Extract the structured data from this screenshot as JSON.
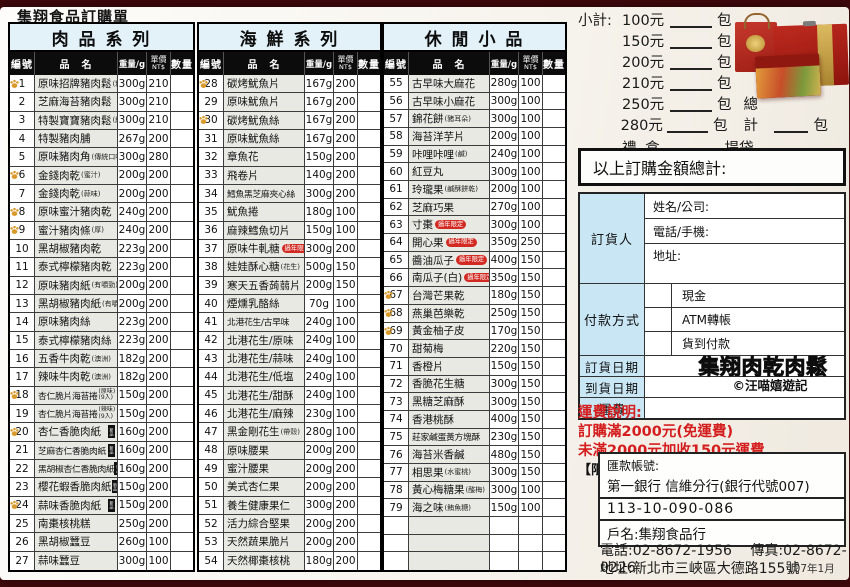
{
  "title": "集翔食品訂購單",
  "columns": {
    "no": "編號",
    "name": "品　名",
    "weight": "重量/g",
    "price_top": "單價",
    "price_bottom": "NT$",
    "qty": "數量"
  },
  "badges": {
    "new": "新品",
    "cny": "過年限定"
  },
  "sections": [
    {
      "title": "肉 品 系 列",
      "items": [
        {
          "no": "1",
          "name": "原味招牌豬肉鬆",
          "note": "(粗)",
          "weight": "300g",
          "price": "210",
          "paw": true
        },
        {
          "no": "2",
          "name": "芝麻海苔豬肉鬆",
          "weight": "300g",
          "price": "210"
        },
        {
          "no": "3",
          "name": "特製寶寶豬肉鬆",
          "note": "(細)",
          "weight": "300g",
          "price": "210"
        },
        {
          "no": "4",
          "name": "特製豬肉脯",
          "weight": "267g",
          "price": "200"
        },
        {
          "no": "5",
          "name": "原味豬肉角",
          "note": "(傳統口味)",
          "weight": "300g",
          "price": "280"
        },
        {
          "no": "6",
          "name": "金錢肉乾",
          "note": "(蜜汁)",
          "weight": "200g",
          "price": "200",
          "paw": true
        },
        {
          "no": "7",
          "name": "金錢肉乾",
          "note": "(蒜味)",
          "weight": "200g",
          "price": "200"
        },
        {
          "no": "8",
          "name": "原味蜜汁豬肉乾",
          "weight": "240g",
          "price": "200",
          "paw": true
        },
        {
          "no": "9",
          "name": "蜜汁豬肉條",
          "note": "(厚)",
          "weight": "240g",
          "price": "200",
          "paw": true
        },
        {
          "no": "10",
          "name": "黑胡椒豬肉乾",
          "weight": "223g",
          "price": "200"
        },
        {
          "no": "11",
          "name": "泰式檸檬豬肉乾",
          "weight": "223g",
          "price": "200"
        },
        {
          "no": "12",
          "name": "原味豬肉紙",
          "note": "(有嚼勁)",
          "weight": "200g",
          "price": "200"
        },
        {
          "no": "13",
          "name": "黑胡椒豬肉紙",
          "note": "(有嚼勁)",
          "weight": "200g",
          "price": "200"
        },
        {
          "no": "14",
          "name": "原味豬肉絲",
          "weight": "223g",
          "price": "200"
        },
        {
          "no": "15",
          "name": "泰式檸檬豬肉絲",
          "weight": "223g",
          "price": "200"
        },
        {
          "no": "16",
          "name": "五香牛肉乾",
          "note": "(澳洲)",
          "weight": "182g",
          "price": "200"
        },
        {
          "no": "17",
          "name": "辣味牛肉乾",
          "note": "(澳洲)",
          "weight": "182g",
          "price": "200"
        },
        {
          "no": "18",
          "name": "杏仁脆片海苔捲",
          "note": "(原味)",
          "note2": "(9入)",
          "weight": "150g",
          "price": "200",
          "paw": true
        },
        {
          "no": "19",
          "name": "杏仁脆片海苔捲",
          "note": "(辣味)",
          "note2": "(9入)",
          "weight": "150g",
          "price": "200"
        },
        {
          "no": "20",
          "name": "杏仁香脆肉紙",
          "badge": "new",
          "weight": "160g",
          "price": "200",
          "paw": true
        },
        {
          "no": "21",
          "name": "芝麻杏仁香脆肉紙",
          "badge": "new",
          "weight": "160g",
          "price": "200"
        },
        {
          "no": "22",
          "name": "黑胡椒杏仁香脆肉紙",
          "badge": "new",
          "weight": "160g",
          "price": "200"
        },
        {
          "no": "23",
          "name": "櫻花蝦香脆肉紙",
          "badge": "new",
          "weight": "150g",
          "price": "200"
        },
        {
          "no": "24",
          "name": "蒜味香脆肉紙",
          "badge": "new",
          "weight": "150g",
          "price": "200",
          "paw": true
        },
        {
          "no": "25",
          "name": "南棗核桃糕",
          "weight": "250g",
          "price": "200"
        },
        {
          "no": "26",
          "name": "黑胡椒蠶豆",
          "weight": "260g",
          "price": "100"
        },
        {
          "no": "27",
          "name": "蒜味蠶豆",
          "weight": "300g",
          "price": "100"
        }
      ]
    },
    {
      "title": "海 鮮 系 列",
      "items": [
        {
          "no": "28",
          "name": "碳烤魷魚片",
          "weight": "167g",
          "price": "200",
          "paw": true
        },
        {
          "no": "29",
          "name": "原味魷魚片",
          "weight": "167g",
          "price": "200"
        },
        {
          "no": "30",
          "name": "碳烤魷魚絲",
          "weight": "167g",
          "price": "200",
          "paw": true
        },
        {
          "no": "31",
          "name": "原味魷魚絲",
          "weight": "167g",
          "price": "200"
        },
        {
          "no": "32",
          "name": "章魚花",
          "weight": "150g",
          "price": "200"
        },
        {
          "no": "33",
          "name": "飛卷片",
          "weight": "140g",
          "price": "200"
        },
        {
          "no": "34",
          "name": "鱈魚黑芝麻夾心絲",
          "weight": "300g",
          "price": "200"
        },
        {
          "no": "35",
          "name": "魷魚捲",
          "weight": "180g",
          "price": "100"
        },
        {
          "no": "36",
          "name": "麻辣鱈魚切片",
          "weight": "150g",
          "price": "100"
        },
        {
          "no": "37",
          "name": "原味牛軋糖",
          "badge": "cny",
          "weight": "300g",
          "price": "200"
        },
        {
          "no": "38",
          "name": "娃娃酥心糖",
          "note": "(花生)",
          "weight": "500g",
          "price": "150"
        },
        {
          "no": "39",
          "name": "寒天五香蒟蒻片",
          "weight": "200g",
          "price": "150"
        },
        {
          "no": "40",
          "name": "煙燻乳酪絲",
          "weight": "70g",
          "price": "100"
        },
        {
          "no": "41",
          "name": "北港花生/古早味",
          "weight": "240g",
          "price": "100"
        },
        {
          "no": "42",
          "name": "北港花生/原味",
          "weight": "240g",
          "price": "100"
        },
        {
          "no": "43",
          "name": "北港花生/蒜味",
          "weight": "240g",
          "price": "100"
        },
        {
          "no": "44",
          "name": "北港花生/低塩",
          "weight": "240g",
          "price": "100"
        },
        {
          "no": "45",
          "name": "北港花生/甜酥",
          "weight": "240g",
          "price": "100"
        },
        {
          "no": "46",
          "name": "北港花生/麻辣",
          "weight": "230g",
          "price": "100"
        },
        {
          "no": "47",
          "name": "黑金剛花生",
          "note": "(帶殼)",
          "weight": "280g",
          "price": "100"
        },
        {
          "no": "48",
          "name": "原味腰果",
          "weight": "200g",
          "price": "200"
        },
        {
          "no": "49",
          "name": "蜜汁腰果",
          "weight": "200g",
          "price": "200"
        },
        {
          "no": "50",
          "name": "美式杏仁果",
          "weight": "200g",
          "price": "200"
        },
        {
          "no": "51",
          "name": "養生健康果仁",
          "weight": "300g",
          "price": "200"
        },
        {
          "no": "52",
          "name": "活力綜合堅果",
          "weight": "200g",
          "price": "200"
        },
        {
          "no": "53",
          "name": "天然蔬果脆片",
          "weight": "200g",
          "price": "200"
        },
        {
          "no": "54",
          "name": "天然椰棗核桃",
          "weight": "180g",
          "price": "200"
        }
      ]
    },
    {
      "title": "休 閒 小 品",
      "empty_rows": 3,
      "items": [
        {
          "no": "55",
          "name": "古早味大麻花",
          "weight": "280g",
          "price": "100"
        },
        {
          "no": "56",
          "name": "古早味小麻花",
          "weight": "300g",
          "price": "100"
        },
        {
          "no": "57",
          "name": "錦花餅",
          "note": "(豬耳朵)",
          "weight": "300g",
          "price": "100"
        },
        {
          "no": "58",
          "name": "海苔洋芋片",
          "weight": "200g",
          "price": "100"
        },
        {
          "no": "59",
          "name": "咔哩咔哩",
          "note": "(鹹)",
          "weight": "240g",
          "price": "100"
        },
        {
          "no": "60",
          "name": "紅豆丸",
          "weight": "300g",
          "price": "100"
        },
        {
          "no": "61",
          "name": "玲瓏果",
          "note": "(鹹酥餅乾)",
          "weight": "200g",
          "price": "100"
        },
        {
          "no": "62",
          "name": "芝麻巧果",
          "weight": "270g",
          "price": "100"
        },
        {
          "no": "63",
          "name": "寸棗",
          "badge": "cny",
          "weight": "300g",
          "price": "100"
        },
        {
          "no": "64",
          "name": "開心果",
          "badge": "cny",
          "weight": "350g",
          "price": "250"
        },
        {
          "no": "65",
          "name": "醬油瓜子",
          "badge": "cny",
          "weight": "400g",
          "price": "150"
        },
        {
          "no": "66",
          "name": "南瓜子(白)",
          "badge": "cny",
          "weight": "350g",
          "price": "150"
        },
        {
          "no": "67",
          "name": "台灣芒果乾",
          "weight": "180g",
          "price": "150",
          "paw": true
        },
        {
          "no": "68",
          "name": "燕巢芭樂乾",
          "weight": "250g",
          "price": "150",
          "paw": true
        },
        {
          "no": "69",
          "name": "黃金柚子皮",
          "weight": "170g",
          "price": "150",
          "paw": true
        },
        {
          "no": "70",
          "name": "甜菊梅",
          "weight": "220g",
          "price": "150"
        },
        {
          "no": "71",
          "name": "香橙片",
          "weight": "150g",
          "price": "150"
        },
        {
          "no": "72",
          "name": "香脆花生糖",
          "weight": "300g",
          "price": "150"
        },
        {
          "no": "73",
          "name": "黑糖芝麻酥",
          "weight": "300g",
          "price": "150"
        },
        {
          "no": "74",
          "name": "香港桃酥",
          "weight": "400g",
          "price": "150"
        },
        {
          "no": "75",
          "name": "莊家鹹蛋黃方塊酥",
          "weight": "230g",
          "price": "150"
        },
        {
          "no": "76",
          "name": "海苔米香鹹",
          "weight": "480g",
          "price": "150"
        },
        {
          "no": "77",
          "name": "相思果",
          "note": "(水蜜桃)",
          "weight": "300g",
          "price": "150"
        },
        {
          "no": "78",
          "name": "黃心梅糖果",
          "note": "(酸梅)",
          "weight": "300g",
          "price": "100"
        },
        {
          "no": "79",
          "name": "海之味",
          "note": "(鮪魚糖)",
          "weight": "150g",
          "price": "100"
        }
      ]
    }
  ],
  "subtotal": {
    "label": "小計:",
    "unit": "包",
    "rows": [
      "100元",
      "150元",
      "200元",
      "210元",
      "250元",
      "280元"
    ],
    "total_label": "總計",
    "giftbox_label": "禮 盒",
    "bag_label": "提袋"
  },
  "order_total_label": "以上訂購金額總計:",
  "info": {
    "orderer_label": "訂貨人",
    "orderer_fields": [
      "姓名/公司:",
      "電話/手機:",
      "地址:"
    ],
    "payment_label": "付款方式",
    "payment_options": [
      "現金",
      "ATM轉帳",
      "貨到付款"
    ],
    "order_date_label": "訂貨日期",
    "arrival_date_label": "到貨日期",
    "shipping_label": "運費"
  },
  "logo": {
    "text": "集翔肉乾肉鬆",
    "credit": "©汪喵嬉遊記"
  },
  "shipping_note": {
    "title": "運費說明:",
    "line1": "訂購滿2000元(免運費)",
    "line2": "未滿2000元加收150元運費",
    "line2_suffix": "【限台灣本島】"
  },
  "bank": {
    "label": "匯款帳號:",
    "bank_line": "第一銀行 信維分行(銀行代號007)",
    "account": "113-10-090-086",
    "holder": "戶名:集翔食品行"
  },
  "contact": {
    "phone": "電話:02-8672-1956",
    "fax": "傳真:02-8672-0226",
    "address": "地址:新北市三峽區大德路155號",
    "date": "107年1月"
  },
  "colors": {
    "backdrop": "#5a1114",
    "accent_red": "#d41e1e",
    "table_header_bg": "#0c0c0c",
    "section_bg": "#e3f1f8",
    "label_bg": "#c9e6f4",
    "paw": "#d99a2b"
  }
}
